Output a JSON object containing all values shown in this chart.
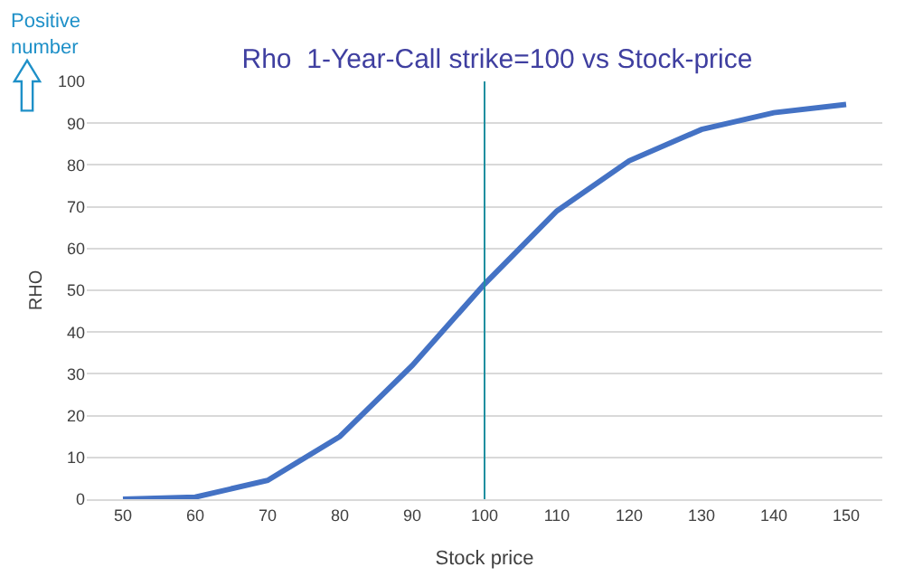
{
  "chart_data": {
    "type": "line",
    "title": "Rho  1-Year-Call strike=100 vs Stock-price",
    "xlabel": "Stock price",
    "ylabel": "RHO",
    "x": [
      50,
      60,
      70,
      80,
      90,
      100,
      110,
      120,
      130,
      140,
      150
    ],
    "series": [
      {
        "color": "#4472c4",
        "values": [
          0,
          0.5,
          4.5,
          15,
          32,
          51.5,
          69,
          81,
          88.5,
          92.5,
          94.5
        ]
      }
    ],
    "xlim": [
      45,
      155
    ],
    "xticks": [
      50,
      60,
      70,
      80,
      90,
      100,
      110,
      120,
      130,
      140,
      150
    ],
    "ylim": [
      0,
      100
    ],
    "yticks": [
      0,
      10,
      20,
      30,
      40,
      50,
      60,
      70,
      80,
      90,
      100
    ],
    "grid": "y",
    "legend": false,
    "marker": "none",
    "line_style": "solid",
    "ref_lines": [
      {
        "axis": "x",
        "value": 100,
        "color": "#1f8fa0"
      }
    ],
    "annotations": [
      "Positive number"
    ]
  }
}
